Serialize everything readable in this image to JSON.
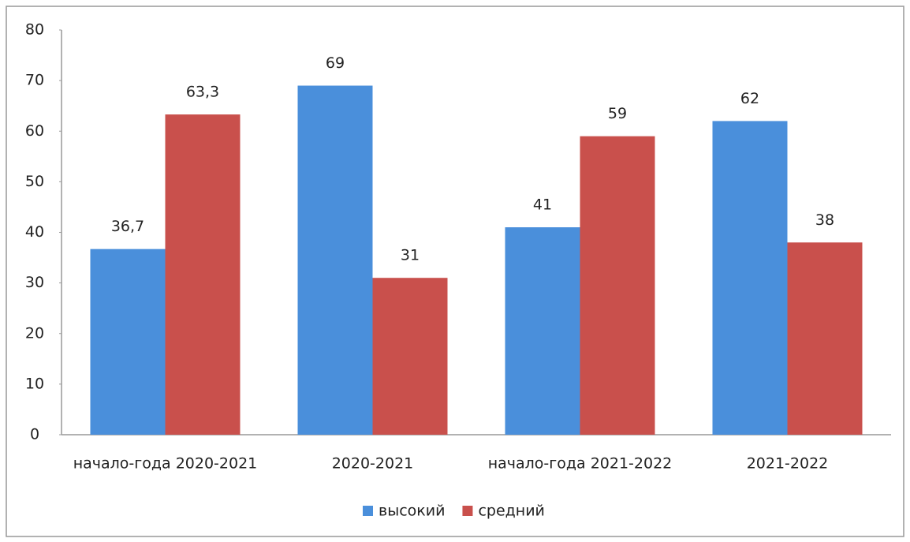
{
  "chart_data": {
    "type": "bar",
    "categories": [
      "начало-года 2020-2021",
      "2020-2021",
      "начало-года 2021-2022",
      "2021-2022"
    ],
    "series": [
      {
        "name": "высокий",
        "color": "#4a8fdb",
        "values": [
          36.7,
          69,
          41,
          62
        ],
        "value_labels": [
          "36,7",
          "69",
          "41",
          "62"
        ]
      },
      {
        "name": "средний",
        "color": "#c9504c",
        "values": [
          63.3,
          31,
          59,
          38
        ],
        "value_labels": [
          "63,3",
          "31",
          "59",
          "38"
        ]
      }
    ],
    "ylim": [
      0,
      80
    ],
    "yticks": [
      0,
      10,
      20,
      30,
      40,
      50,
      60,
      70,
      80
    ],
    "grid": false,
    "legend": "bottom"
  }
}
